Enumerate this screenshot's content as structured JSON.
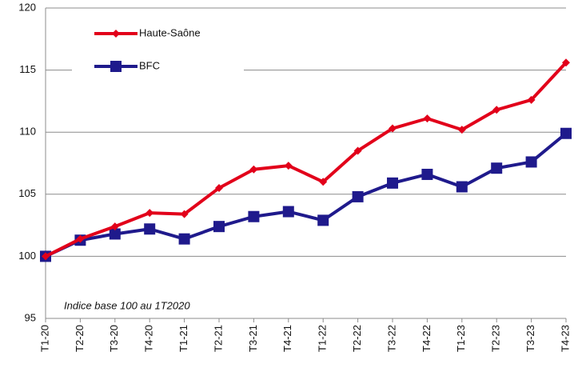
{
  "chart_data": {
    "type": "line",
    "annotation": "Indice base 100 au 1T2020",
    "categories": [
      "T1-20",
      "T2-20",
      "T3-20",
      "T4-20",
      "T1-21",
      "T2-21",
      "T3-21",
      "T4-21",
      "T1-22",
      "T2-22",
      "T3-22",
      "T4-22",
      "T1-23",
      "T2-23",
      "T3-23",
      "T4-23"
    ],
    "series": [
      {
        "name": "Haute-Saône",
        "color": "#e2001a",
        "marker": "diamond",
        "values": [
          100,
          101.4,
          102.4,
          103.5,
          103.4,
          105.5,
          107.0,
          107.3,
          106.0,
          108.5,
          110.3,
          111.1,
          110.2,
          111.8,
          112.6,
          115.6
        ]
      },
      {
        "name": "BFC",
        "color": "#1f1a8c",
        "marker": "square",
        "values": [
          100,
          101.3,
          101.8,
          102.2,
          101.4,
          102.4,
          103.2,
          103.6,
          102.9,
          104.8,
          105.9,
          106.6,
          105.6,
          107.1,
          107.6,
          109.9
        ]
      }
    ],
    "ylim": [
      95,
      120
    ],
    "yticks": [
      95,
      100,
      105,
      110,
      115,
      120
    ],
    "grid": true,
    "legend": "upper left"
  }
}
